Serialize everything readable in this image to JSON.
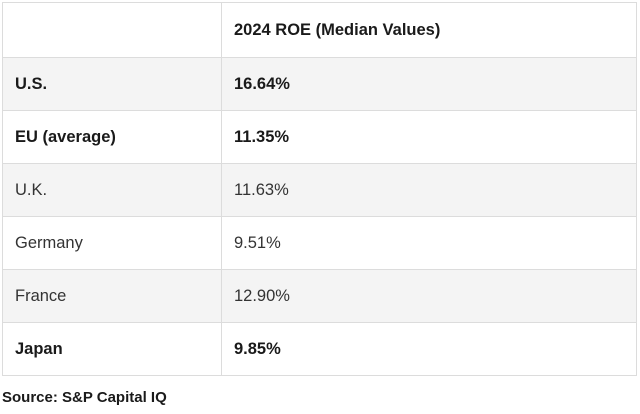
{
  "table": {
    "header": {
      "col1": "",
      "col2": "2024 ROE (Median Values)"
    },
    "rows": [
      {
        "label": "U.S.",
        "value": "16.64%"
      },
      {
        "label": "EU (average)",
        "value": "11.35%"
      },
      {
        "label": "U.K.",
        "value": "11.63%"
      },
      {
        "label": "Germany",
        "value": "9.51%"
      },
      {
        "label": "France",
        "value": "12.90%"
      },
      {
        "label": "Japan",
        "value": "9.85%"
      }
    ]
  },
  "source": "Source: S&P Capital IQ",
  "colors": {
    "shaded_row": "#f4f4f4",
    "border": "#dcdcdc",
    "text": "#222222"
  }
}
